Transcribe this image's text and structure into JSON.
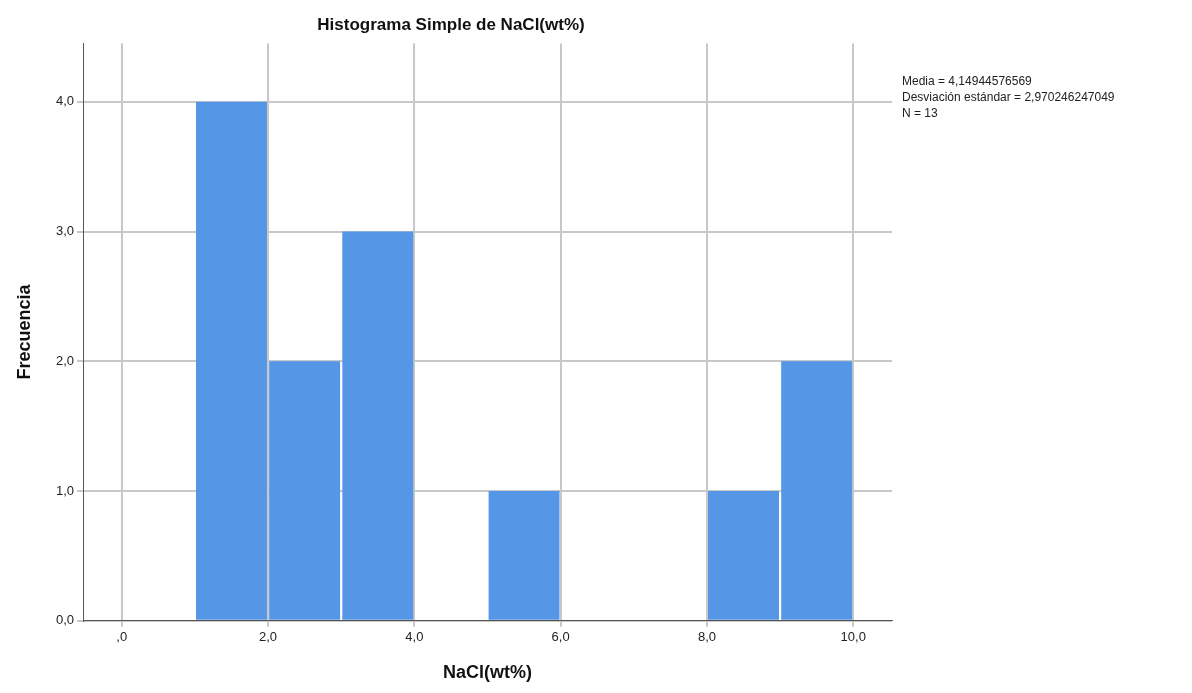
{
  "chart_data": {
    "type": "histogram",
    "title": "Histograma Simple de NaCl(wt%)",
    "xlabel": "NaCl(wt%)",
    "ylabel": "Frecuencia",
    "bins": [
      1,
      2,
      3,
      4,
      5,
      6,
      7,
      8,
      9,
      10
    ],
    "values": [
      4,
      2,
      3,
      0,
      1,
      0,
      0,
      1,
      2
    ],
    "color": "#5596e6",
    "xlim": [
      -0.53,
      10.53
    ],
    "xticks": [
      {
        "value": 0,
        "label": ",0"
      },
      {
        "value": 2,
        "label": "2,0"
      },
      {
        "value": 4,
        "label": "4,0"
      },
      {
        "value": 6,
        "label": "6,0"
      },
      {
        "value": 8,
        "label": "8,0"
      },
      {
        "value": 10,
        "label": "10,0"
      }
    ],
    "ylim": [
      0,
      4.45
    ],
    "yticks": [
      {
        "value": 0,
        "label": "0,0"
      },
      {
        "value": 1,
        "label": "1,0"
      },
      {
        "value": 2,
        "label": "2,0"
      },
      {
        "value": 3,
        "label": "3,0"
      },
      {
        "value": 4,
        "label": "4,0"
      }
    ],
    "grid": true,
    "annotations": [
      "Media = 4,14944576569",
      "Desviación estándar = 2,970246247049",
      "N = 13"
    ]
  }
}
